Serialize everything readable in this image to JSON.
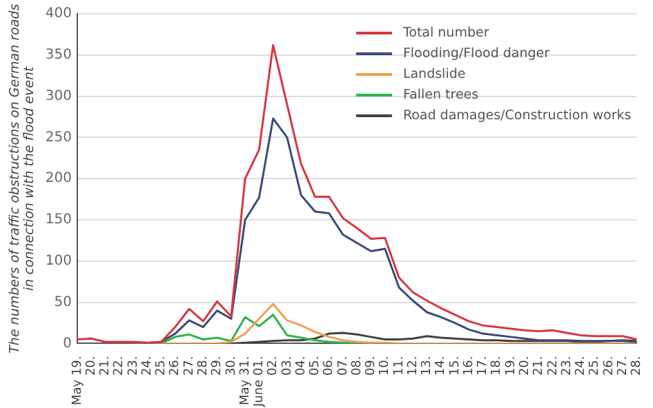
{
  "chart_data": {
    "type": "line",
    "ylabel": "The numbers of traffic obstructions on German roads\nin connection with the flood event",
    "categories": [
      "May 19.",
      "20.",
      "21.",
      "22.",
      "23.",
      "24.",
      "25.",
      "26.",
      "27.",
      "28.",
      "29.",
      "30.",
      "May 31.",
      "June 01.",
      "02.",
      "03.",
      "04.",
      "05.",
      "06.",
      "07.",
      "08.",
      "09.",
      "10.",
      "11.",
      "12.",
      "13.",
      "14.",
      "15.",
      "16.",
      "17.",
      "18.",
      "19.",
      "20.",
      "21.",
      "22.",
      "23.",
      "24.",
      "25.",
      "26.",
      "27.",
      "28."
    ],
    "series": [
      {
        "name": "Total number",
        "color": "#d7373f",
        "values": [
          5,
          6,
          2,
          2,
          2,
          1,
          2,
          20,
          42,
          27,
          51,
          33,
          200,
          235,
          362,
          290,
          218,
          178,
          178,
          152,
          140,
          127,
          128,
          80,
          62,
          52,
          43,
          35,
          27,
          22,
          20,
          18,
          16,
          15,
          16,
          13,
          10,
          9,
          9,
          9,
          5
        ]
      },
      {
        "name": "Flooding/Flood danger",
        "color": "#3a4a7a",
        "values": [
          0,
          0,
          0,
          0,
          0,
          0,
          2,
          12,
          28,
          20,
          40,
          30,
          150,
          177,
          273,
          250,
          180,
          160,
          158,
          132,
          122,
          112,
          115,
          68,
          52,
          38,
          32,
          25,
          17,
          12,
          10,
          8,
          6,
          4,
          4,
          4,
          3,
          3,
          3,
          3,
          2
        ]
      },
      {
        "name": "Landslide",
        "color": "#f0a050",
        "values": [
          0,
          0,
          0,
          0,
          0,
          0,
          0,
          0,
          0,
          0,
          0,
          2,
          12,
          30,
          48,
          28,
          22,
          14,
          8,
          4,
          2,
          1,
          1,
          0,
          0,
          0,
          0,
          0,
          0,
          0,
          0,
          0,
          0,
          0,
          0,
          0,
          0,
          0,
          0,
          0,
          0
        ]
      },
      {
        "name": "Fallen trees",
        "color": "#2db34a",
        "values": [
          null,
          null,
          null,
          null,
          null,
          0,
          0,
          8,
          11,
          5,
          7,
          3,
          32,
          21,
          35,
          10,
          7,
          4,
          2,
          1,
          0,
          0,
          null,
          null,
          null,
          null,
          null,
          null,
          null,
          null,
          null,
          null,
          null,
          null,
          null,
          null,
          null,
          null,
          null,
          null,
          null
        ]
      },
      {
        "name": "Road damages/Construction works",
        "color": "#404040",
        "values": [
          0,
          0,
          0,
          0,
          0,
          0,
          0,
          0,
          0,
          0,
          0,
          0,
          1,
          2,
          3,
          4,
          4,
          6,
          12,
          13,
          11,
          8,
          5,
          5,
          6,
          9,
          7,
          6,
          5,
          4,
          4,
          3,
          3,
          3,
          3,
          3,
          2,
          2,
          3,
          4,
          3
        ]
      }
    ],
    "ylim": [
      0,
      400
    ],
    "yticks": [
      0,
      50,
      100,
      150,
      200,
      250,
      300,
      350,
      400
    ],
    "grid": "y",
    "legend": "top right",
    "marker": "none",
    "line_style": "solid"
  }
}
